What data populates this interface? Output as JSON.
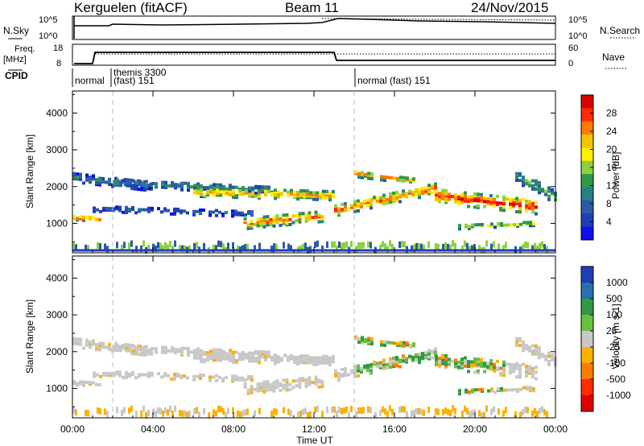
{
  "header": {
    "title": "Kerguelen (fitACF)",
    "beam": "Beam 11",
    "date": "24/Nov/2015"
  },
  "panels": {
    "nsky": {
      "label": "N.Sky",
      "right_label": "N.Search",
      "left_ticks": [
        "10^5",
        "10^0"
      ],
      "right_ticks": [
        "10^5",
        "10^0"
      ]
    },
    "freq": {
      "label_line1": "Freq.",
      "label_line2": "[MHz]",
      "left_ticks": [
        "18",
        "8"
      ],
      "right_ticks": [
        "60",
        "0"
      ],
      "right_label": "Nave"
    },
    "cpid": {
      "label": "CPID",
      "segments": [
        {
          "label": "normal",
          "start_hour": 0.0
        },
        {
          "label": "themis 3300",
          "start_hour": 1.0
        },
        {
          "label": "(fast) 151",
          "start_hour": 1.0
        },
        {
          "label": "normal (fast) 151",
          "start_hour": 14.0
        }
      ]
    }
  },
  "chart_data": [
    {
      "type": "heatmap",
      "parameter": "power",
      "ylabel": "Slant Range [km]",
      "xlim_hours": [
        0,
        24
      ],
      "ylim": [
        200,
        4600
      ],
      "yticks": [
        1000,
        2000,
        3000,
        4000
      ],
      "colorbar": {
        "label": "Power [dB]",
        "ticks": [
          "28",
          "24",
          "20",
          "16",
          "12",
          "8",
          "4"
        ],
        "colors": [
          "#d70000",
          "#ff2a00",
          "#ff7a00",
          "#f3c400",
          "#ffef00",
          "#8cd23c",
          "#2f9a46",
          "#2a7f86",
          "#2c5aa8",
          "#1f3fb8",
          "#1010e8"
        ]
      }
    },
    {
      "type": "heatmap",
      "parameter": "velocity",
      "ylabel": "Slant Range [km]",
      "xlabel": "Time UT",
      "xticks": [
        "00:00",
        "04:00",
        "08:00",
        "12:00",
        "16:00",
        "20:00",
        "00:00"
      ],
      "xlim_hours": [
        0,
        24
      ],
      "ylim": [
        200,
        4600
      ],
      "yticks": [
        1000,
        2000,
        3000,
        4000
      ],
      "colorbar": {
        "label": "Velocity [m s-1]",
        "ticks": [
          "1000",
          "500",
          "100",
          "25",
          "-25",
          "-100",
          "-500",
          "-1000"
        ],
        "colors": [
          "#1f3fb8",
          "#2a6fb0",
          "#2f9a46",
          "#67c23a",
          "#c8c8c8",
          "#ffb000",
          "#ff7a00",
          "#ff2a00",
          "#e00000"
        ]
      }
    }
  ]
}
